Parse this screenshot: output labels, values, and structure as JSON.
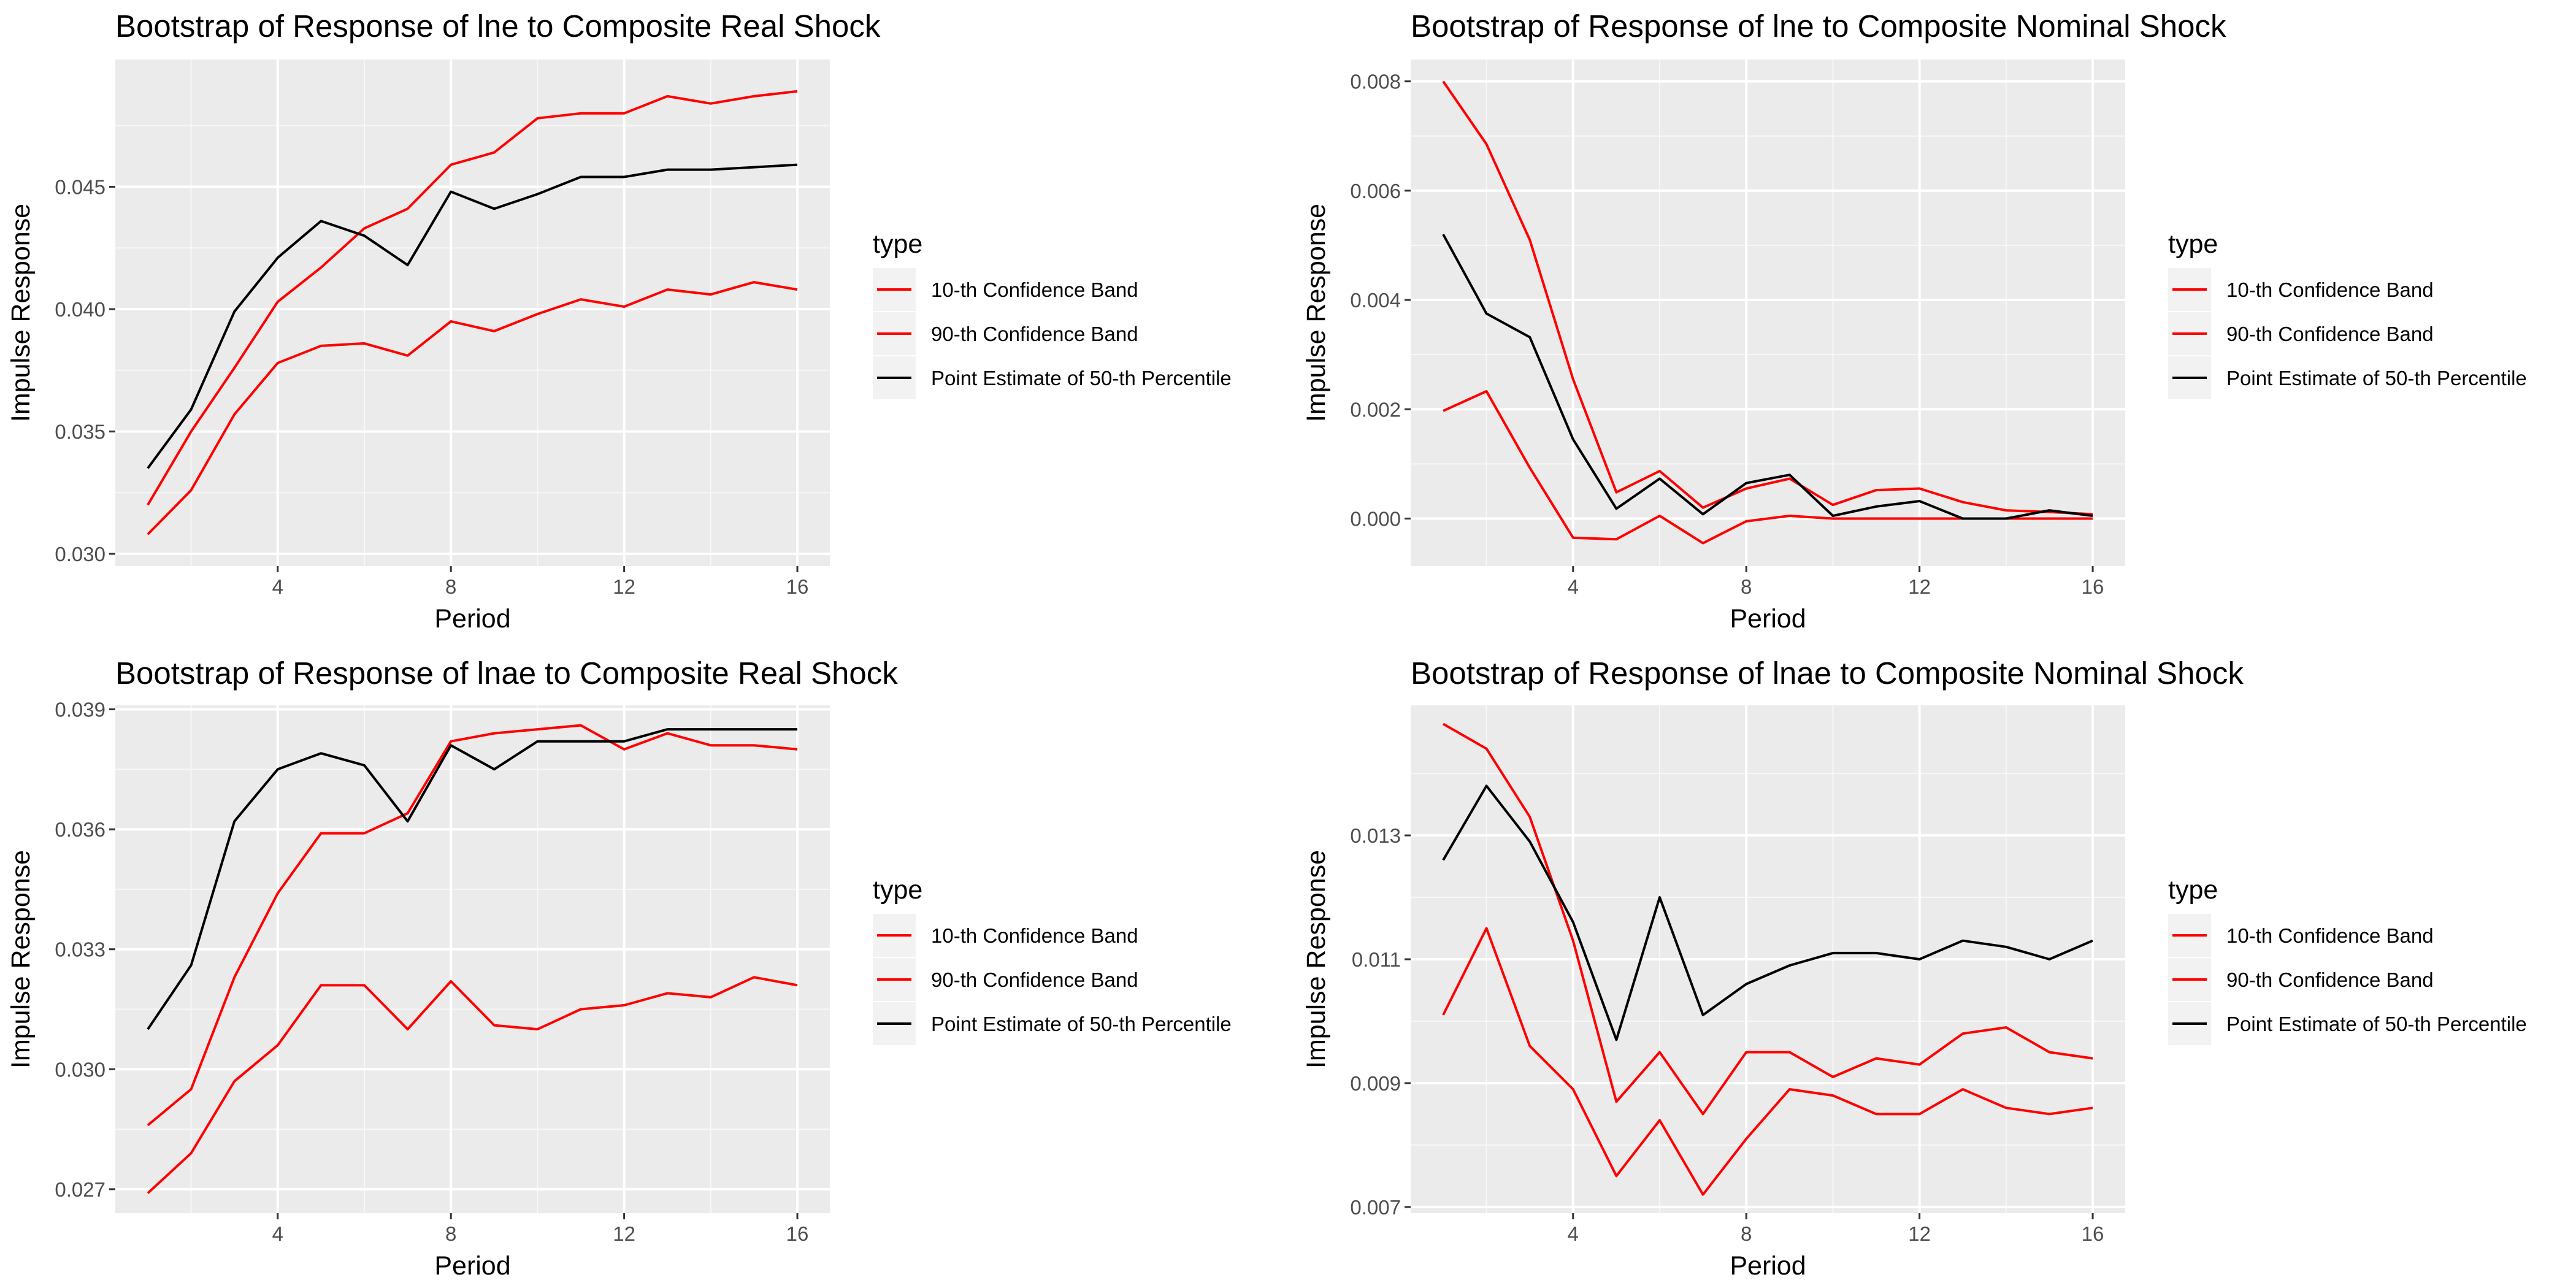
{
  "chart_data": [
    {
      "type": "line",
      "title": "Bootstrap of Response of lne to Composite Real Shock",
      "xlabel": "Period",
      "ylabel": "Impulse Response",
      "xlim": [
        0.25,
        16.75
      ],
      "ylim": [
        0.0295,
        0.0502
      ],
      "x_ticks": [
        4,
        8,
        12,
        16
      ],
      "y_ticks": [
        0.03,
        0.035,
        0.04,
        0.045
      ],
      "y_tick_labels": [
        "0.030",
        "0.035",
        "0.040",
        "0.045"
      ],
      "legend": {
        "title": "type",
        "position": "right",
        "labels": [
          "10-th Confidence Band",
          "90-th Confidence Band",
          "Point Estimate of 50-th Percentile"
        ]
      },
      "grid": true,
      "x": [
        1,
        2,
        3,
        4,
        5,
        6,
        7,
        8,
        9,
        10,
        11,
        12,
        13,
        14,
        15,
        16
      ],
      "series": [
        {
          "name": "10-th Confidence Band",
          "color": "#ff0000",
          "values": [
            0.0308,
            0.0326,
            0.0357,
            0.0378,
            0.0385,
            0.0386,
            0.0381,
            0.0395,
            0.0391,
            0.0398,
            0.0404,
            0.0401,
            0.0408,
            0.0406,
            0.0411,
            0.0408
          ]
        },
        {
          "name": "90-th Confidence Band",
          "color": "#ff0000",
          "values": [
            0.032,
            0.035,
            0.0376,
            0.0403,
            0.0417,
            0.0433,
            0.0441,
            0.0459,
            0.0464,
            0.0478,
            0.048,
            0.048,
            0.0487,
            0.0484,
            0.0487,
            0.0489
          ]
        },
        {
          "name": "Point Estimate of 50-th Percentile",
          "color": "#000000",
          "values": [
            0.0335,
            0.0359,
            0.0399,
            0.0421,
            0.0436,
            0.043,
            0.0418,
            0.0448,
            0.0441,
            0.0447,
            0.0454,
            0.0454,
            0.0457,
            0.0457,
            0.0458,
            0.0459
          ]
        }
      ]
    },
    {
      "type": "line",
      "title": "Bootstrap of Response of lne to Composite Nominal Shock",
      "xlabel": "Period",
      "ylabel": "Impulse Response",
      "xlim": [
        0.25,
        16.75
      ],
      "ylim": [
        -0.00087,
        0.0084
      ],
      "x_ticks": [
        4,
        8,
        12,
        16
      ],
      "y_ticks": [
        0.0,
        0.002,
        0.004,
        0.006,
        0.008
      ],
      "y_tick_labels": [
        "0.000",
        "0.002",
        "0.004",
        "0.006",
        "0.008"
      ],
      "legend": {
        "title": "type",
        "position": "right",
        "labels": [
          "10-th Confidence Band",
          "90-th Confidence Band",
          "Point Estimate of 50-th Percentile"
        ]
      },
      "grid": true,
      "x": [
        1,
        2,
        3,
        4,
        5,
        6,
        7,
        8,
        9,
        10,
        11,
        12,
        13,
        14,
        15,
        16
      ],
      "series": [
        {
          "name": "10-th Confidence Band",
          "color": "#ff0000",
          "values": [
            0.00197,
            0.00233,
            0.00093,
            -0.00035,
            -0.00038,
            5e-05,
            -0.00045,
            -5e-05,
            5e-05,
            0.0,
            0.0,
            0.0,
            0.0,
            0.0,
            0.0,
            0.0
          ]
        },
        {
          "name": "90-th Confidence Band",
          "color": "#ff0000",
          "values": [
            0.008,
            0.00685,
            0.0051,
            0.00255,
            0.00048,
            0.00087,
            0.0002,
            0.00055,
            0.00073,
            0.00025,
            0.00052,
            0.00055,
            0.0003,
            0.00015,
            0.00012,
            8e-05
          ]
        },
        {
          "name": "Point Estimate of 50-th Percentile",
          "color": "#000000",
          "values": [
            0.0052,
            0.00375,
            0.00332,
            0.00145,
            0.00018,
            0.00073,
            8e-05,
            0.00065,
            0.0008,
            5e-05,
            0.00022,
            0.00032,
            0.0,
            0.0,
            0.00015,
            5e-05
          ]
        }
      ]
    },
    {
      "type": "line",
      "title": "Bootstrap of Response of lnae to Composite Real Shock",
      "xlabel": "Period",
      "ylabel": "Impulse Response",
      "xlim": [
        0.25,
        16.75
      ],
      "ylim": [
        0.0264,
        0.0391
      ],
      "x_ticks": [
        4,
        8,
        12,
        16
      ],
      "y_ticks": [
        0.027,
        0.03,
        0.033,
        0.036,
        0.039
      ],
      "y_tick_labels": [
        "0.027",
        "0.030",
        "0.033",
        "0.036",
        "0.039"
      ],
      "legend": {
        "title": "type",
        "position": "right",
        "labels": [
          "10-th Confidence Band",
          "90-th Confidence Band",
          "Point Estimate of 50-th Percentile"
        ]
      },
      "grid": true,
      "x": [
        1,
        2,
        3,
        4,
        5,
        6,
        7,
        8,
        9,
        10,
        11,
        12,
        13,
        14,
        15,
        16
      ],
      "series": [
        {
          "name": "10-th Confidence Band",
          "color": "#ff0000",
          "values": [
            0.0269,
            0.0279,
            0.0297,
            0.0306,
            0.0321,
            0.0321,
            0.031,
            0.0322,
            0.0311,
            0.031,
            0.0315,
            0.0316,
            0.0319,
            0.0318,
            0.0323,
            0.0321
          ]
        },
        {
          "name": "90-th Confidence Band",
          "color": "#ff0000",
          "values": [
            0.0286,
            0.0295,
            0.0323,
            0.0344,
            0.0359,
            0.0359,
            0.0364,
            0.0382,
            0.0384,
            0.0385,
            0.0386,
            0.038,
            0.0384,
            0.0381,
            0.0381,
            0.038
          ]
        },
        {
          "name": "Point Estimate of 50-th Percentile",
          "color": "#000000",
          "values": [
            0.031,
            0.0326,
            0.0362,
            0.0375,
            0.0379,
            0.0376,
            0.0362,
            0.0381,
            0.0375,
            0.0382,
            0.0382,
            0.0382,
            0.0385,
            0.0385,
            0.0385,
            0.0385
          ]
        }
      ]
    },
    {
      "type": "line",
      "title": "Bootstrap of Response of lnae to Composite Nominal Shock",
      "xlabel": "Period",
      "ylabel": "Impulse Response",
      "xlim": [
        0.25,
        16.75
      ],
      "ylim": [
        0.0069,
        0.0151
      ],
      "x_ticks": [
        4,
        8,
        12,
        16
      ],
      "y_ticks": [
        0.007,
        0.009,
        0.011,
        0.013
      ],
      "y_tick_labels": [
        "0.007",
        "0.009",
        "0.011",
        "0.013"
      ],
      "legend": {
        "title": "type",
        "position": "right",
        "labels": [
          "10-th Confidence Band",
          "90-th Confidence Band",
          "Point Estimate of 50-th Percentile"
        ]
      },
      "grid": true,
      "x": [
        1,
        2,
        3,
        4,
        5,
        6,
        7,
        8,
        9,
        10,
        11,
        12,
        13,
        14,
        15,
        16
      ],
      "series": [
        {
          "name": "10-th Confidence Band",
          "color": "#ff0000",
          "values": [
            0.0101,
            0.0115,
            0.0096,
            0.0089,
            0.0075,
            0.0084,
            0.0072,
            0.0081,
            0.0089,
            0.0088,
            0.0085,
            0.0085,
            0.0089,
            0.0086,
            0.0085,
            0.0086
          ]
        },
        {
          "name": "90-th Confidence Band",
          "color": "#ff0000",
          "values": [
            0.0148,
            0.0144,
            0.0133,
            0.0113,
            0.0087,
            0.0095,
            0.0085,
            0.0095,
            0.0095,
            0.0091,
            0.0094,
            0.0093,
            0.0098,
            0.0099,
            0.0095,
            0.0094
          ]
        },
        {
          "name": "Point Estimate of 50-th Percentile",
          "color": "#000000",
          "values": [
            0.0126,
            0.0138,
            0.0129,
            0.0116,
            0.0097,
            0.012,
            0.0101,
            0.0106,
            0.0109,
            0.0111,
            0.0111,
            0.011,
            0.0113,
            0.0112,
            0.011,
            0.0113
          ]
        }
      ]
    }
  ]
}
